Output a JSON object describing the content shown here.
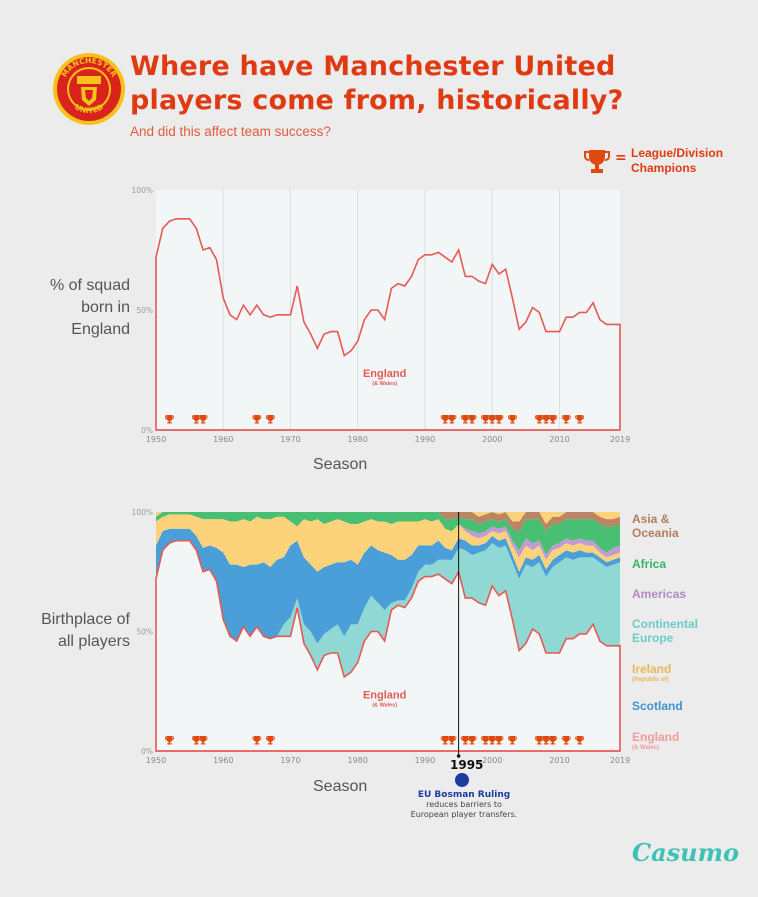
{
  "header": {
    "title_line1": "Where have Manchester United",
    "title_line2": "players come from, historically?",
    "subtitle": "And did this affect team success?",
    "crest_text_top": "MANCHESTER",
    "crest_text_bottom": "UNITED",
    "legend_eq": "=",
    "legend_line1": "League/Division",
    "legend_line2": "Champions"
  },
  "labels": {
    "chart1_ylabel_lines": [
      "% of squad",
      "born in",
      "England"
    ],
    "chart2_ylabel_lines": [
      "Birthplace of",
      "all players"
    ],
    "season": "Season",
    "england_label": "England",
    "england_sub": "(& Wales)"
  },
  "legend2": [
    {
      "lines": [
        "Asia &",
        "Oceania"
      ],
      "color": "#b07d60"
    },
    {
      "lines": [
        "Africa"
      ],
      "color": "#36b36a"
    },
    {
      "lines": [
        "Americas"
      ],
      "color": "#b08ac4"
    },
    {
      "lines": [
        "Continental",
        "Europe"
      ],
      "color": "#6ccbc6"
    },
    {
      "lines": [
        "Ireland"
      ],
      "sub": "(Republic of)",
      "color": "#e9b75a"
    },
    {
      "lines": [
        "Scotland"
      ],
      "color": "#3f93cf"
    },
    {
      "lines": [
        "England"
      ],
      "sub": "(& Wales)",
      "color": "#f19a9a"
    }
  ],
  "bosman": {
    "year": "1995",
    "title": "EU Bosman Ruling",
    "text_line1": "reduces barriers to",
    "text_line2": "European player transfers."
  },
  "brand": "Casumo",
  "colors": {
    "title": "#e03a12",
    "england_line": "#e45a55",
    "plot_bg": "#f2f6f6",
    "scotland": "#4b9fd8",
    "ireland": "#fcd27a",
    "europe": "#8fd8d4",
    "americas": "#c39bd3",
    "africa": "#48bf72",
    "asia": "#bb8565",
    "trophy": "#e04a10"
  },
  "chart_data": [
    {
      "type": "area",
      "title": "% of squad born in England",
      "xlabel": "Season",
      "ylabel": "% of squad born in England",
      "xlim": [
        1950,
        2019
      ],
      "ylim": [
        0,
        100
      ],
      "x_ticks": [
        "1950",
        "1960",
        "1970",
        "1980",
        "1990",
        "2000",
        "2010",
        "2019"
      ],
      "y_ticks": [
        "0%",
        "50%",
        "100%"
      ],
      "x": [
        1950,
        1951,
        1952,
        1953,
        1954,
        1955,
        1956,
        1957,
        1958,
        1959,
        1960,
        1961,
        1962,
        1963,
        1964,
        1965,
        1966,
        1967,
        1968,
        1969,
        1970,
        1971,
        1972,
        1973,
        1974,
        1975,
        1976,
        1977,
        1978,
        1979,
        1980,
        1981,
        1982,
        1983,
        1984,
        1985,
        1986,
        1987,
        1988,
        1989,
        1990,
        1991,
        1992,
        1993,
        1994,
        1995,
        1996,
        1997,
        1998,
        1999,
        2000,
        2001,
        2002,
        2003,
        2004,
        2005,
        2006,
        2007,
        2008,
        2009,
        2010,
        2011,
        2012,
        2013,
        2014,
        2015,
        2016,
        2017,
        2018,
        2019
      ],
      "england": [
        72,
        84,
        87,
        88,
        88,
        88,
        84,
        75,
        76,
        71,
        55,
        48,
        46,
        52,
        48,
        52,
        48,
        47,
        48,
        48,
        48,
        60,
        45,
        40,
        34,
        40,
        41,
        41,
        31,
        33,
        37,
        46,
        50,
        50,
        46,
        59,
        61,
        60,
        64,
        71,
        73,
        73,
        74,
        72,
        70,
        75,
        64,
        64,
        62,
        61,
        69,
        65,
        67,
        55,
        42,
        45,
        51,
        49,
        41,
        41,
        41,
        47,
        47,
        49,
        49,
        53,
        46,
        44,
        44,
        44
      ],
      "championship_seasons": [
        1952,
        1956,
        1957,
        1965,
        1967,
        1993,
        1994,
        1996,
        1997,
        1999,
        2000,
        2001,
        2003,
        2007,
        2008,
        2009,
        2011,
        2013
      ]
    },
    {
      "type": "area",
      "title": "Birthplace of all players",
      "xlabel": "Season",
      "ylabel": "Birthplace of all players",
      "xlim": [
        1950,
        2019
      ],
      "ylim": [
        0,
        100
      ],
      "x_ticks": [
        "1950",
        "1960",
        "1970",
        "1980",
        "1990",
        "2000",
        "2010",
        "2019"
      ],
      "y_ticks": [
        "0%",
        "50%",
        "100%"
      ],
      "x": [
        1950,
        1951,
        1952,
        1953,
        1954,
        1955,
        1956,
        1957,
        1958,
        1959,
        1960,
        1961,
        1962,
        1963,
        1964,
        1965,
        1966,
        1967,
        1968,
        1969,
        1970,
        1971,
        1972,
        1973,
        1974,
        1975,
        1976,
        1977,
        1978,
        1979,
        1980,
        1981,
        1982,
        1983,
        1984,
        1985,
        1986,
        1987,
        1988,
        1989,
        1990,
        1991,
        1992,
        1993,
        1994,
        1995,
        1996,
        1997,
        1998,
        1999,
        2000,
        2001,
        2002,
        2003,
        2004,
        2005,
        2006,
        2007,
        2008,
        2009,
        2010,
        2011,
        2012,
        2013,
        2014,
        2015,
        2016,
        2017,
        2018,
        2019
      ],
      "series": [
        {
          "name": "England",
          "values": [
            72,
            84,
            87,
            88,
            88,
            88,
            84,
            75,
            76,
            71,
            55,
            48,
            46,
            52,
            48,
            52,
            48,
            47,
            48,
            48,
            48,
            60,
            45,
            40,
            34,
            40,
            41,
            41,
            31,
            33,
            37,
            46,
            50,
            50,
            46,
            59,
            61,
            60,
            64,
            71,
            73,
            73,
            74,
            72,
            70,
            75,
            64,
            64,
            62,
            61,
            69,
            65,
            67,
            55,
            42,
            45,
            51,
            49,
            41,
            41,
            41,
            47,
            47,
            49,
            49,
            53,
            46,
            44,
            44,
            44
          ]
        },
        {
          "name": "Continental Europe",
          "values": [
            0,
            0,
            0,
            0,
            0,
            0,
            0,
            0,
            0,
            0,
            0,
            0,
            0,
            0,
            0,
            0,
            0,
            0,
            0,
            5,
            8,
            4,
            8,
            10,
            11,
            9,
            10,
            12,
            17,
            20,
            16,
            14,
            15,
            12,
            13,
            3,
            2,
            3,
            4,
            4,
            5,
            5,
            6,
            8,
            10,
            10,
            20,
            18,
            21,
            23,
            18,
            20,
            19,
            24,
            30,
            33,
            26,
            30,
            32,
            36,
            38,
            34,
            33,
            32,
            32,
            28,
            33,
            33,
            34,
            35
          ]
        },
        {
          "name": "Scotland",
          "values": [
            14,
            8,
            6,
            5,
            5,
            5,
            6,
            10,
            10,
            14,
            28,
            30,
            32,
            25,
            30,
            26,
            31,
            30,
            32,
            28,
            30,
            24,
            28,
            28,
            30,
            28,
            27,
            26,
            31,
            27,
            25,
            23,
            21,
            22,
            24,
            20,
            17,
            17,
            14,
            11,
            8,
            8,
            8,
            5,
            4,
            4,
            4,
            4,
            3,
            3,
            3,
            3,
            3,
            3,
            3,
            3,
            3,
            3,
            3,
            3,
            3,
            3,
            3,
            3,
            2,
            2,
            2,
            2,
            2,
            2
          ]
        },
        {
          "name": "Ireland",
          "values": [
            10,
            6,
            6,
            6,
            6,
            6,
            8,
            12,
            11,
            12,
            14,
            18,
            18,
            20,
            18,
            20,
            18,
            20,
            18,
            17,
            10,
            6,
            16,
            18,
            22,
            18,
            18,
            18,
            17,
            15,
            17,
            13,
            11,
            12,
            13,
            13,
            16,
            16,
            14,
            10,
            11,
            10,
            9,
            8,
            8,
            6,
            4,
            4,
            3,
            3,
            2,
            3,
            3,
            4,
            6,
            5,
            4,
            4,
            4,
            4,
            3,
            3,
            3,
            3,
            3,
            3,
            2,
            2,
            2,
            2
          ]
        },
        {
          "name": "Americas",
          "values": [
            0,
            0,
            0,
            0,
            0,
            0,
            0,
            0,
            0,
            0,
            0,
            0,
            0,
            0,
            0,
            0,
            0,
            0,
            0,
            0,
            0,
            0,
            0,
            0,
            0,
            0,
            0,
            0,
            0,
            0,
            0,
            0,
            0,
            0,
            0,
            0,
            0,
            0,
            0,
            0,
            0,
            0,
            0,
            0,
            0,
            0,
            1,
            2,
            2,
            2,
            2,
            2,
            2,
            2,
            3,
            3,
            3,
            2,
            2,
            2,
            2,
            2,
            2,
            2,
            2,
            2,
            2,
            2,
            3,
            3
          ]
        },
        {
          "name": "Africa",
          "values": [
            2,
            2,
            1,
            1,
            1,
            1,
            2,
            3,
            3,
            3,
            3,
            4,
            4,
            3,
            4,
            2,
            3,
            3,
            2,
            2,
            4,
            6,
            3,
            4,
            3,
            5,
            4,
            3,
            4,
            5,
            5,
            4,
            3,
            4,
            4,
            5,
            4,
            4,
            4,
            4,
            3,
            4,
            3,
            4,
            5,
            3,
            4,
            5,
            4,
            4,
            3,
            3,
            3,
            5,
            8,
            8,
            10,
            9,
            10,
            9,
            8,
            8,
            9,
            8,
            9,
            9,
            10,
            11,
            9,
            9
          ]
        },
        {
          "name": "Asia & Oceania",
          "values": [
            0,
            0,
            0,
            0,
            0,
            0,
            0,
            0,
            0,
            0,
            0,
            0,
            0,
            0,
            0,
            0,
            0,
            0,
            0,
            0,
            0,
            0,
            0,
            0,
            0,
            0,
            0,
            0,
            0,
            0,
            0,
            0,
            0,
            0,
            0,
            0,
            0,
            0,
            0,
            0,
            0,
            0,
            0,
            3,
            3,
            2,
            3,
            3,
            3,
            3,
            3,
            3,
            3,
            3,
            4,
            3,
            3,
            3,
            3,
            3,
            3,
            3,
            3,
            3,
            3,
            3,
            3,
            3,
            3,
            3
          ]
        }
      ],
      "championship_seasons": [
        1952,
        1956,
        1957,
        1965,
        1967,
        1993,
        1994,
        1996,
        1997,
        1999,
        2000,
        2001,
        2003,
        2007,
        2008,
        2009,
        2011,
        2013
      ],
      "annotation": {
        "year": 1995,
        "label": "EU Bosman Ruling"
      }
    }
  ]
}
